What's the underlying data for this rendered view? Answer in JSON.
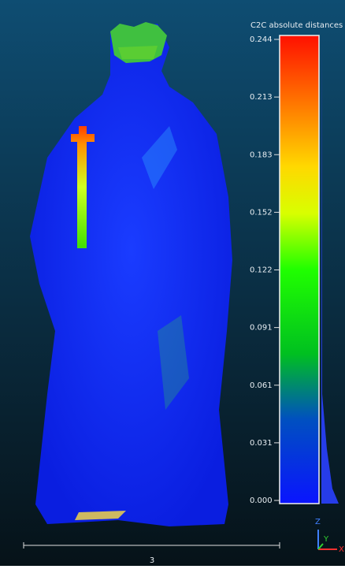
{
  "scale": {
    "title": "C2C absolute distances",
    "ticks": [
      "0.244",
      "0.213",
      "0.183",
      "0.152",
      "0.122",
      "0.091",
      "0.061",
      "0.031",
      "0.000"
    ]
  },
  "scale_bar": {
    "label": "3"
  },
  "axes": {
    "z": "Z",
    "y": "Y",
    "x": "X"
  }
}
